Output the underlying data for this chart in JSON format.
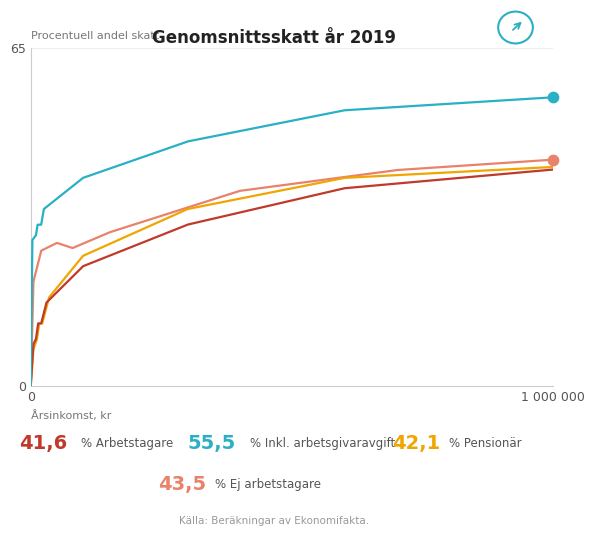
{
  "title": "Genomsnittsskatt år 2019",
  "ylabel": "Procentuell andel skatt",
  "xlabel": "Årsinkomst, kr",
  "source": "Källa: Beräkningar av Ekonomifakta.",
  "ylim": [
    0,
    65
  ],
  "xlim": [
    0,
    1000000
  ],
  "legend": [
    {
      "pct": "41,6",
      "label": "Arbetstagare",
      "color": "#c0392b"
    },
    {
      "pct": "55,5",
      "label": "Inkl. arbetsgivaravgift",
      "color": "#2ab0c5"
    },
    {
      "pct": "42,1",
      "label": "Pensionär",
      "color": "#f0a500"
    },
    {
      "pct": "43,5",
      "label": "Ej arbetstagare",
      "color": "#e8826a"
    }
  ],
  "line_colors": {
    "arbetstagare": "#c0392b",
    "inkl": "#2ab0c5",
    "pensionar": "#f0a500",
    "ej": "#e8826a"
  },
  "final_values": {
    "arbetstagare": 41.6,
    "inkl": 55.5,
    "pensionar": 42.1,
    "ej": 43.5
  },
  "background_color": "#ffffff"
}
